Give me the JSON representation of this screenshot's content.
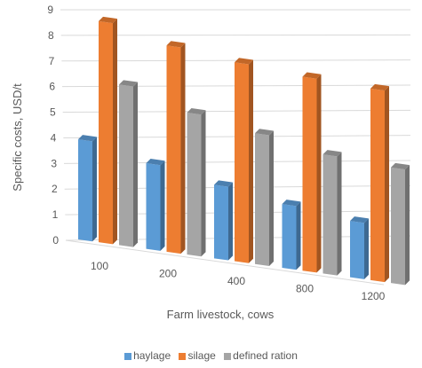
{
  "chart_data": {
    "type": "bar",
    "subtype": "3d-clustered-column",
    "categories": [
      "100",
      "200",
      "400",
      "800",
      "1200"
    ],
    "series": [
      {
        "name": "haylage",
        "values": [
          3.8,
          3.2,
          2.7,
          2.3,
          2.0
        ],
        "color": "#5B9BD5"
      },
      {
        "name": "silage",
        "values": [
          8.4,
          7.7,
          7.3,
          7.0,
          6.8
        ],
        "color": "#ED7D31"
      },
      {
        "name": "defined ration",
        "values": [
          6.1,
          5.3,
          4.8,
          4.3,
          4.1
        ],
        "color": "#A5A5A5"
      }
    ],
    "xlabel": "Farm livestock, cows",
    "ylabel": "Specific costs, USD/t",
    "ylim": [
      0,
      9
    ],
    "yticks": [
      "0",
      "1",
      "2",
      "3",
      "4",
      "5",
      "6",
      "7",
      "8",
      "9"
    ],
    "grid": true,
    "legend_position": "bottom"
  }
}
